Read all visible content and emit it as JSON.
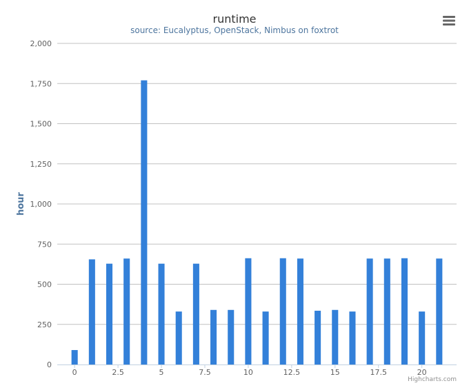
{
  "chart_data": {
    "type": "bar",
    "title": "runtime",
    "subtitle": "source: Eucalyptus, OpenStack, Nimbus on foxtrot",
    "xlabel": "",
    "ylabel": "hour",
    "x": [
      0,
      1,
      2,
      3,
      4,
      5,
      6,
      7,
      8,
      9,
      10,
      11,
      12,
      13,
      14,
      15,
      16,
      17,
      18,
      19,
      20,
      21
    ],
    "values": [
      90,
      655,
      628,
      660,
      1770,
      628,
      330,
      628,
      340,
      340,
      662,
      330,
      662,
      660,
      335,
      340,
      330,
      660,
      660,
      662,
      330,
      660
    ],
    "xlim": [
      -1,
      22
    ],
    "ylim": [
      0,
      2000
    ],
    "x_ticks": [
      0,
      2.5,
      5,
      7.5,
      10,
      12.5,
      15,
      17.5,
      20
    ],
    "x_tick_labels": [
      "0",
      "2.5",
      "5",
      "7.5",
      "10",
      "12.5",
      "15",
      "17.5",
      "20"
    ],
    "y_ticks": [
      0,
      250,
      500,
      750,
      1000,
      1250,
      1500,
      1750,
      2000
    ],
    "y_tick_labels": [
      "0",
      "250",
      "500",
      "750",
      "1,000",
      "1,250",
      "1,500",
      "1,750",
      "2,000"
    ],
    "grid": true,
    "legend": "none",
    "colors": {
      "bar": "#3380d9",
      "grid": "#c0c0c0",
      "title": "#333333",
      "subtitle": "#4d759e",
      "axis_label": "#4d759e",
      "tick": "#606060",
      "credits": "#909090",
      "menu": "#666666"
    }
  },
  "credits": "Highcharts.com",
  "menu_icon": "hamburger-menu-icon"
}
